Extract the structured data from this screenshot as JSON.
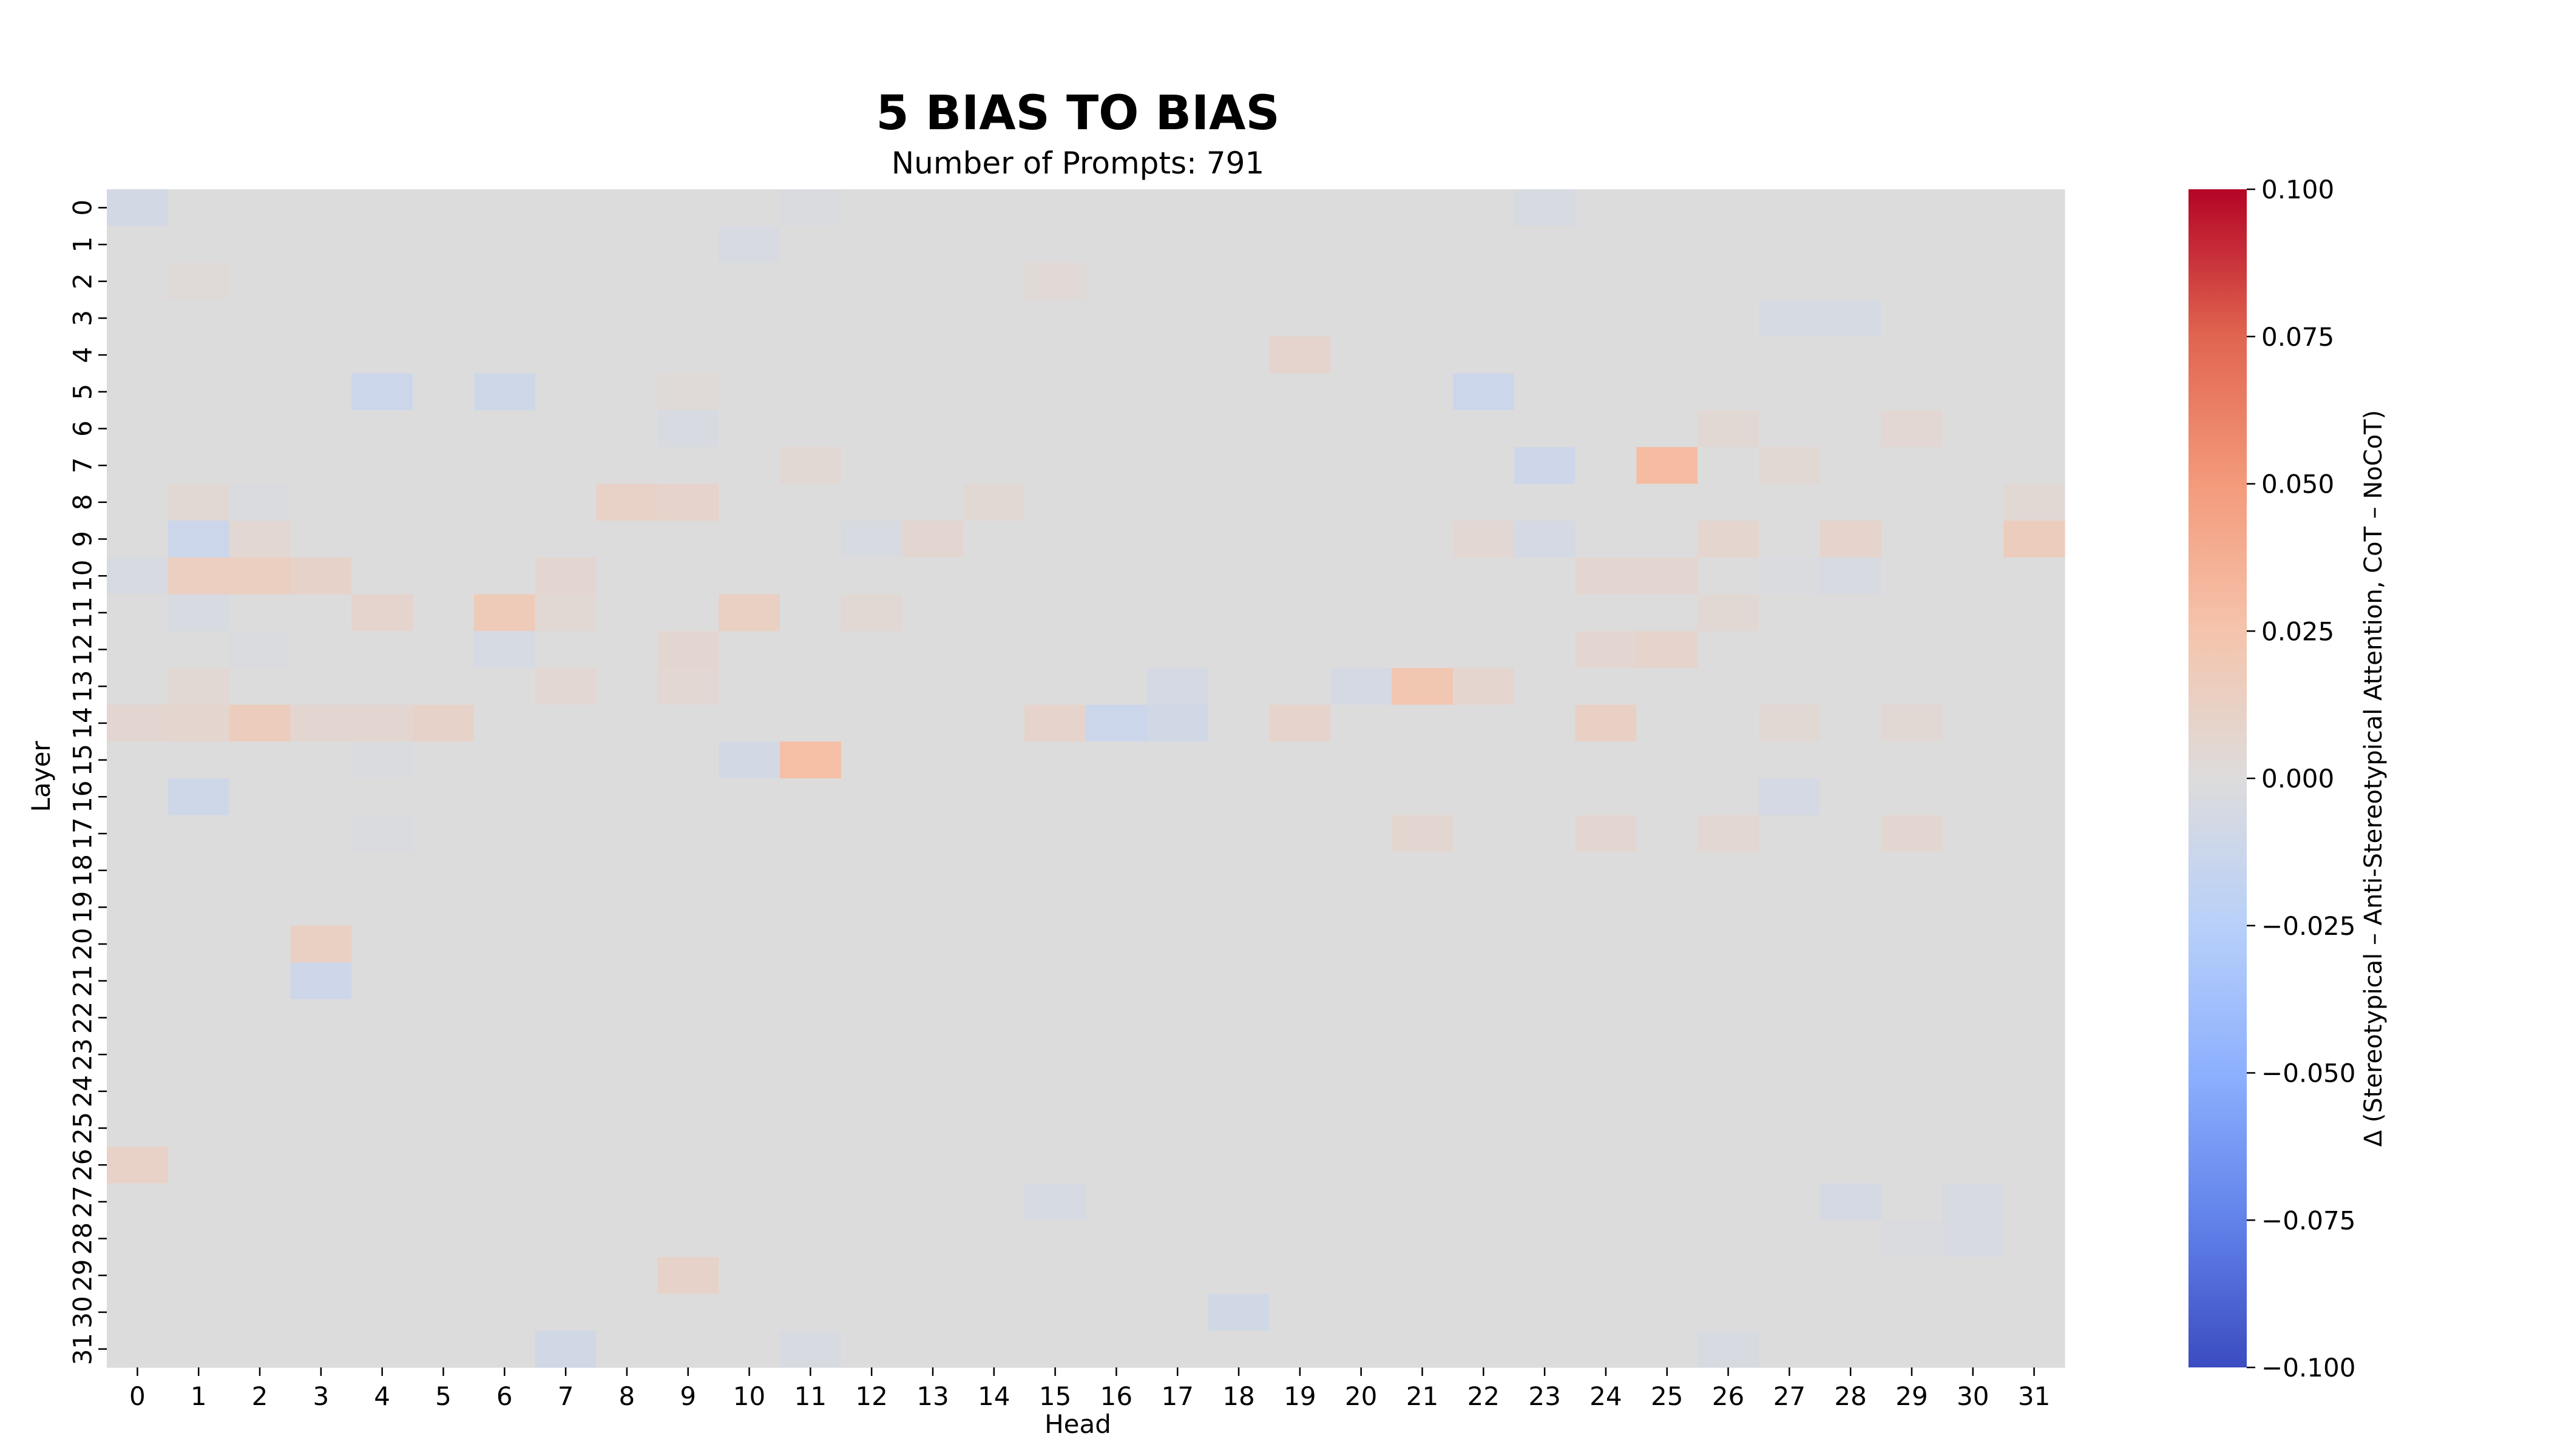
{
  "chart_data": {
    "type": "heatmap",
    "title": "5 BIAS TO BIAS",
    "subtitle": "Number of Prompts: 791",
    "xlabel": "Head",
    "ylabel": "Layer",
    "x_ticks": [
      "0",
      "1",
      "2",
      "3",
      "4",
      "5",
      "6",
      "7",
      "8",
      "9",
      "10",
      "11",
      "12",
      "13",
      "14",
      "15",
      "16",
      "17",
      "18",
      "19",
      "20",
      "21",
      "22",
      "23",
      "24",
      "25",
      "26",
      "27",
      "28",
      "29",
      "30",
      "31"
    ],
    "y_ticks": [
      "0",
      "1",
      "2",
      "3",
      "4",
      "5",
      "6",
      "7",
      "8",
      "9",
      "10",
      "11",
      "12",
      "13",
      "14",
      "15",
      "16",
      "17",
      "18",
      "19",
      "20",
      "21",
      "22",
      "23",
      "24",
      "25",
      "26",
      "27",
      "28",
      "29",
      "30",
      "31"
    ],
    "colorbar": {
      "label": "Δ (Stereotypical – Anti-Stereotypical Attention, CoT – NoCoT)",
      "range": [
        -0.1,
        0.1
      ],
      "ticks": [
        "0.100",
        "0.075",
        "0.050",
        "0.025",
        "0.000",
        "−0.025",
        "−0.050",
        "−0.075",
        "−0.100"
      ],
      "colormap": "coolwarm"
    },
    "nonzero_cells": [
      {
        "layer": 0,
        "head": 0,
        "value": -0.007
      },
      {
        "layer": 0,
        "head": 11,
        "value": -0.003
      },
      {
        "layer": 0,
        "head": 23,
        "value": -0.004
      },
      {
        "layer": 1,
        "head": 10,
        "value": -0.004
      },
      {
        "layer": 2,
        "head": 1,
        "value": 0.002
      },
      {
        "layer": 2,
        "head": 15,
        "value": 0.003
      },
      {
        "layer": 3,
        "head": 27,
        "value": -0.005
      },
      {
        "layer": 3,
        "head": 28,
        "value": -0.005
      },
      {
        "layer": 4,
        "head": 19,
        "value": 0.008
      },
      {
        "layer": 5,
        "head": 4,
        "value": -0.012
      },
      {
        "layer": 5,
        "head": 6,
        "value": -0.01
      },
      {
        "layer": 5,
        "head": 22,
        "value": -0.012
      },
      {
        "layer": 5,
        "head": 9,
        "value": 0.002
      },
      {
        "layer": 6,
        "head": 9,
        "value": -0.004
      },
      {
        "layer": 6,
        "head": 29,
        "value": 0.005
      },
      {
        "layer": 6,
        "head": 26,
        "value": 0.004
      },
      {
        "layer": 7,
        "head": 23,
        "value": -0.011
      },
      {
        "layer": 7,
        "head": 25,
        "value": 0.03
      },
      {
        "layer": 7,
        "head": 11,
        "value": 0.004
      },
      {
        "layer": 7,
        "head": 27,
        "value": 0.004
      },
      {
        "layer": 8,
        "head": 8,
        "value": 0.011
      },
      {
        "layer": 8,
        "head": 9,
        "value": 0.009
      },
      {
        "layer": 8,
        "head": 1,
        "value": 0.004
      },
      {
        "layer": 8,
        "head": 2,
        "value": -0.003
      },
      {
        "layer": 8,
        "head": 14,
        "value": 0.004
      },
      {
        "layer": 8,
        "head": 31,
        "value": 0.004
      },
      {
        "layer": 9,
        "head": 1,
        "value": -0.012
      },
      {
        "layer": 9,
        "head": 2,
        "value": 0.005
      },
      {
        "layer": 9,
        "head": 13,
        "value": 0.006
      },
      {
        "layer": 9,
        "head": 12,
        "value": -0.004
      },
      {
        "layer": 9,
        "head": 22,
        "value": 0.005
      },
      {
        "layer": 9,
        "head": 23,
        "value": -0.006
      },
      {
        "layer": 9,
        "head": 26,
        "value": 0.007
      },
      {
        "layer": 9,
        "head": 28,
        "value": 0.009
      },
      {
        "layer": 9,
        "head": 31,
        "value": 0.016
      },
      {
        "layer": 10,
        "head": 1,
        "value": 0.015
      },
      {
        "layer": 10,
        "head": 2,
        "value": 0.014
      },
      {
        "layer": 10,
        "head": 3,
        "value": 0.01
      },
      {
        "layer": 10,
        "head": 0,
        "value": -0.004
      },
      {
        "layer": 10,
        "head": 7,
        "value": 0.006
      },
      {
        "layer": 10,
        "head": 24,
        "value": 0.006
      },
      {
        "layer": 10,
        "head": 25,
        "value": 0.006
      },
      {
        "layer": 10,
        "head": 27,
        "value": -0.003
      },
      {
        "layer": 10,
        "head": 28,
        "value": -0.004
      },
      {
        "layer": 11,
        "head": 4,
        "value": 0.008
      },
      {
        "layer": 11,
        "head": 6,
        "value": 0.018
      },
      {
        "layer": 11,
        "head": 10,
        "value": 0.013
      },
      {
        "layer": 11,
        "head": 1,
        "value": -0.004
      },
      {
        "layer": 11,
        "head": 12,
        "value": 0.004
      },
      {
        "layer": 11,
        "head": 7,
        "value": 0.004
      },
      {
        "layer": 11,
        "head": 26,
        "value": 0.004
      },
      {
        "layer": 12,
        "head": 6,
        "value": -0.005
      },
      {
        "layer": 12,
        "head": 9,
        "value": 0.006
      },
      {
        "layer": 12,
        "head": 24,
        "value": 0.006
      },
      {
        "layer": 12,
        "head": 25,
        "value": 0.009
      },
      {
        "layer": 12,
        "head": 2,
        "value": -0.003
      },
      {
        "layer": 13,
        "head": 21,
        "value": 0.022
      },
      {
        "layer": 13,
        "head": 20,
        "value": -0.006
      },
      {
        "layer": 13,
        "head": 17,
        "value": -0.006
      },
      {
        "layer": 13,
        "head": 22,
        "value": 0.007
      },
      {
        "layer": 13,
        "head": 9,
        "value": 0.005
      },
      {
        "layer": 13,
        "head": 7,
        "value": 0.005
      },
      {
        "layer": 13,
        "head": 1,
        "value": 0.004
      },
      {
        "layer": 14,
        "head": 2,
        "value": 0.016
      },
      {
        "layer": 14,
        "head": 5,
        "value": 0.01
      },
      {
        "layer": 14,
        "head": 15,
        "value": 0.009
      },
      {
        "layer": 14,
        "head": 16,
        "value": -0.012
      },
      {
        "layer": 14,
        "head": 17,
        "value": -0.009
      },
      {
        "layer": 14,
        "head": 19,
        "value": 0.009
      },
      {
        "layer": 14,
        "head": 24,
        "value": 0.012
      },
      {
        "layer": 14,
        "head": 0,
        "value": 0.006
      },
      {
        "layer": 14,
        "head": 1,
        "value": 0.007
      },
      {
        "layer": 14,
        "head": 3,
        "value": 0.006
      },
      {
        "layer": 14,
        "head": 4,
        "value": 0.006
      },
      {
        "layer": 14,
        "head": 27,
        "value": 0.004
      },
      {
        "layer": 14,
        "head": 29,
        "value": 0.004
      },
      {
        "layer": 15,
        "head": 11,
        "value": 0.028
      },
      {
        "layer": 15,
        "head": 10,
        "value": -0.007
      },
      {
        "layer": 15,
        "head": 4,
        "value": -0.003
      },
      {
        "layer": 16,
        "head": 1,
        "value": -0.01
      },
      {
        "layer": 16,
        "head": 27,
        "value": -0.006
      },
      {
        "layer": 17,
        "head": 21,
        "value": 0.006
      },
      {
        "layer": 17,
        "head": 24,
        "value": 0.006
      },
      {
        "layer": 17,
        "head": 26,
        "value": 0.005
      },
      {
        "layer": 17,
        "head": 29,
        "value": 0.006
      },
      {
        "layer": 17,
        "head": 4,
        "value": -0.003
      },
      {
        "layer": 20,
        "head": 3,
        "value": 0.013
      },
      {
        "layer": 21,
        "head": 3,
        "value": -0.011
      },
      {
        "layer": 26,
        "head": 0,
        "value": 0.011
      },
      {
        "layer": 27,
        "head": 15,
        "value": -0.005
      },
      {
        "layer": 27,
        "head": 28,
        "value": -0.006
      },
      {
        "layer": 27,
        "head": 30,
        "value": -0.004
      },
      {
        "layer": 28,
        "head": 30,
        "value": -0.004
      },
      {
        "layer": 28,
        "head": 29,
        "value": -0.003
      },
      {
        "layer": 29,
        "head": 9,
        "value": 0.01
      },
      {
        "layer": 30,
        "head": 18,
        "value": -0.009
      },
      {
        "layer": 31,
        "head": 7,
        "value": -0.009
      },
      {
        "layer": 31,
        "head": 11,
        "value": -0.004
      },
      {
        "layer": 31,
        "head": 26,
        "value": -0.004
      }
    ]
  }
}
